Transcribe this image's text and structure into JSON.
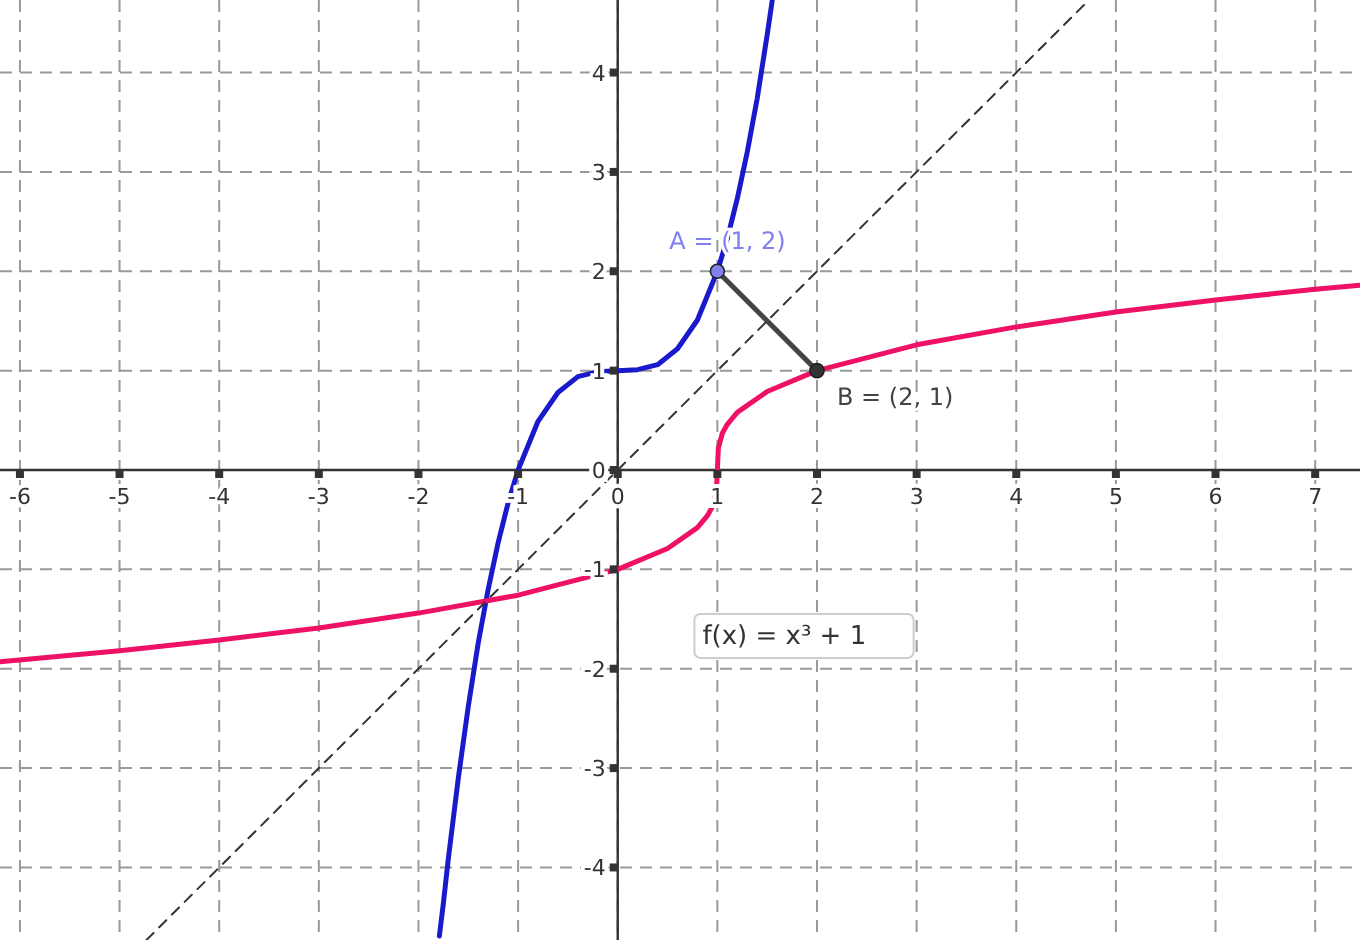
{
  "chart_data": {
    "type": "line",
    "xlim": [
      -6.2,
      7.45
    ],
    "ylim": [
      -4.73,
      4.73
    ],
    "xticks": [
      -6,
      -5,
      -4,
      -3,
      -2,
      -1,
      0,
      1,
      2,
      3,
      4,
      5,
      6,
      7
    ],
    "yticks": [
      -4,
      -3,
      -2,
      -1,
      0,
      1,
      2,
      3,
      4
    ],
    "grid": true,
    "series": [
      {
        "color": "#1a1acc",
        "x": [
          -1.79,
          -1.75,
          -1.7,
          -1.6,
          -1.5,
          -1.4,
          -1.3,
          -1.2,
          -1.1,
          -1,
          -0.8,
          -0.6,
          -0.4,
          -0.2,
          0,
          0.2,
          0.4,
          0.6,
          0.8,
          1,
          1.1,
          1.2,
          1.3,
          1.4,
          1.5,
          1.55
        ],
        "values": [
          -4.69,
          -4.36,
          -3.91,
          -3.1,
          -2.38,
          -1.74,
          -1.2,
          -0.73,
          -0.33,
          0,
          0.49,
          0.78,
          0.94,
          0.99,
          1,
          1.01,
          1.06,
          1.22,
          1.51,
          2,
          2.33,
          2.73,
          3.2,
          3.74,
          4.38,
          4.72
        ]
      },
      {
        "color": "#ee1166",
        "x": [
          -6.2,
          -5,
          -4,
          -3,
          -2,
          -1,
          0,
          0.5,
          0.8,
          0.9,
          0.95,
          0.99,
          1,
          1.01,
          1.05,
          1.1,
          1.2,
          1.5,
          2,
          3,
          4,
          5,
          6,
          7,
          7.45
        ],
        "values": [
          -1.93,
          -1.82,
          -1.71,
          -1.59,
          -1.44,
          -1.26,
          -1,
          -0.79,
          -0.58,
          -0.46,
          -0.37,
          -0.22,
          0,
          0.22,
          0.37,
          0.46,
          0.58,
          0.79,
          1,
          1.26,
          1.44,
          1.59,
          1.71,
          1.82,
          1.86
        ]
      },
      {
        "color": "#333333",
        "line_style": "dashed",
        "x": [
          -4.73,
          4.73
        ],
        "values": [
          -4.73,
          4.73
        ]
      },
      {
        "color": "#444444",
        "x": [
          1,
          2
        ],
        "values": [
          2,
          1
        ]
      },
      {
        "type": "scatter",
        "marker": "circle",
        "color": "#8080ee",
        "x": [
          1
        ],
        "values": [
          2
        ]
      },
      {
        "type": "scatter",
        "marker": "circle",
        "color": "#333333",
        "x": [
          2
        ],
        "values": [
          1
        ]
      }
    ],
    "annotations": [
      {
        "text": "A = (1, 2)",
        "x": 1,
        "y": 2
      },
      {
        "text": "B = (2, 1)",
        "x": 2,
        "y": 1
      },
      "f(x) = x³ + 1"
    ]
  }
}
